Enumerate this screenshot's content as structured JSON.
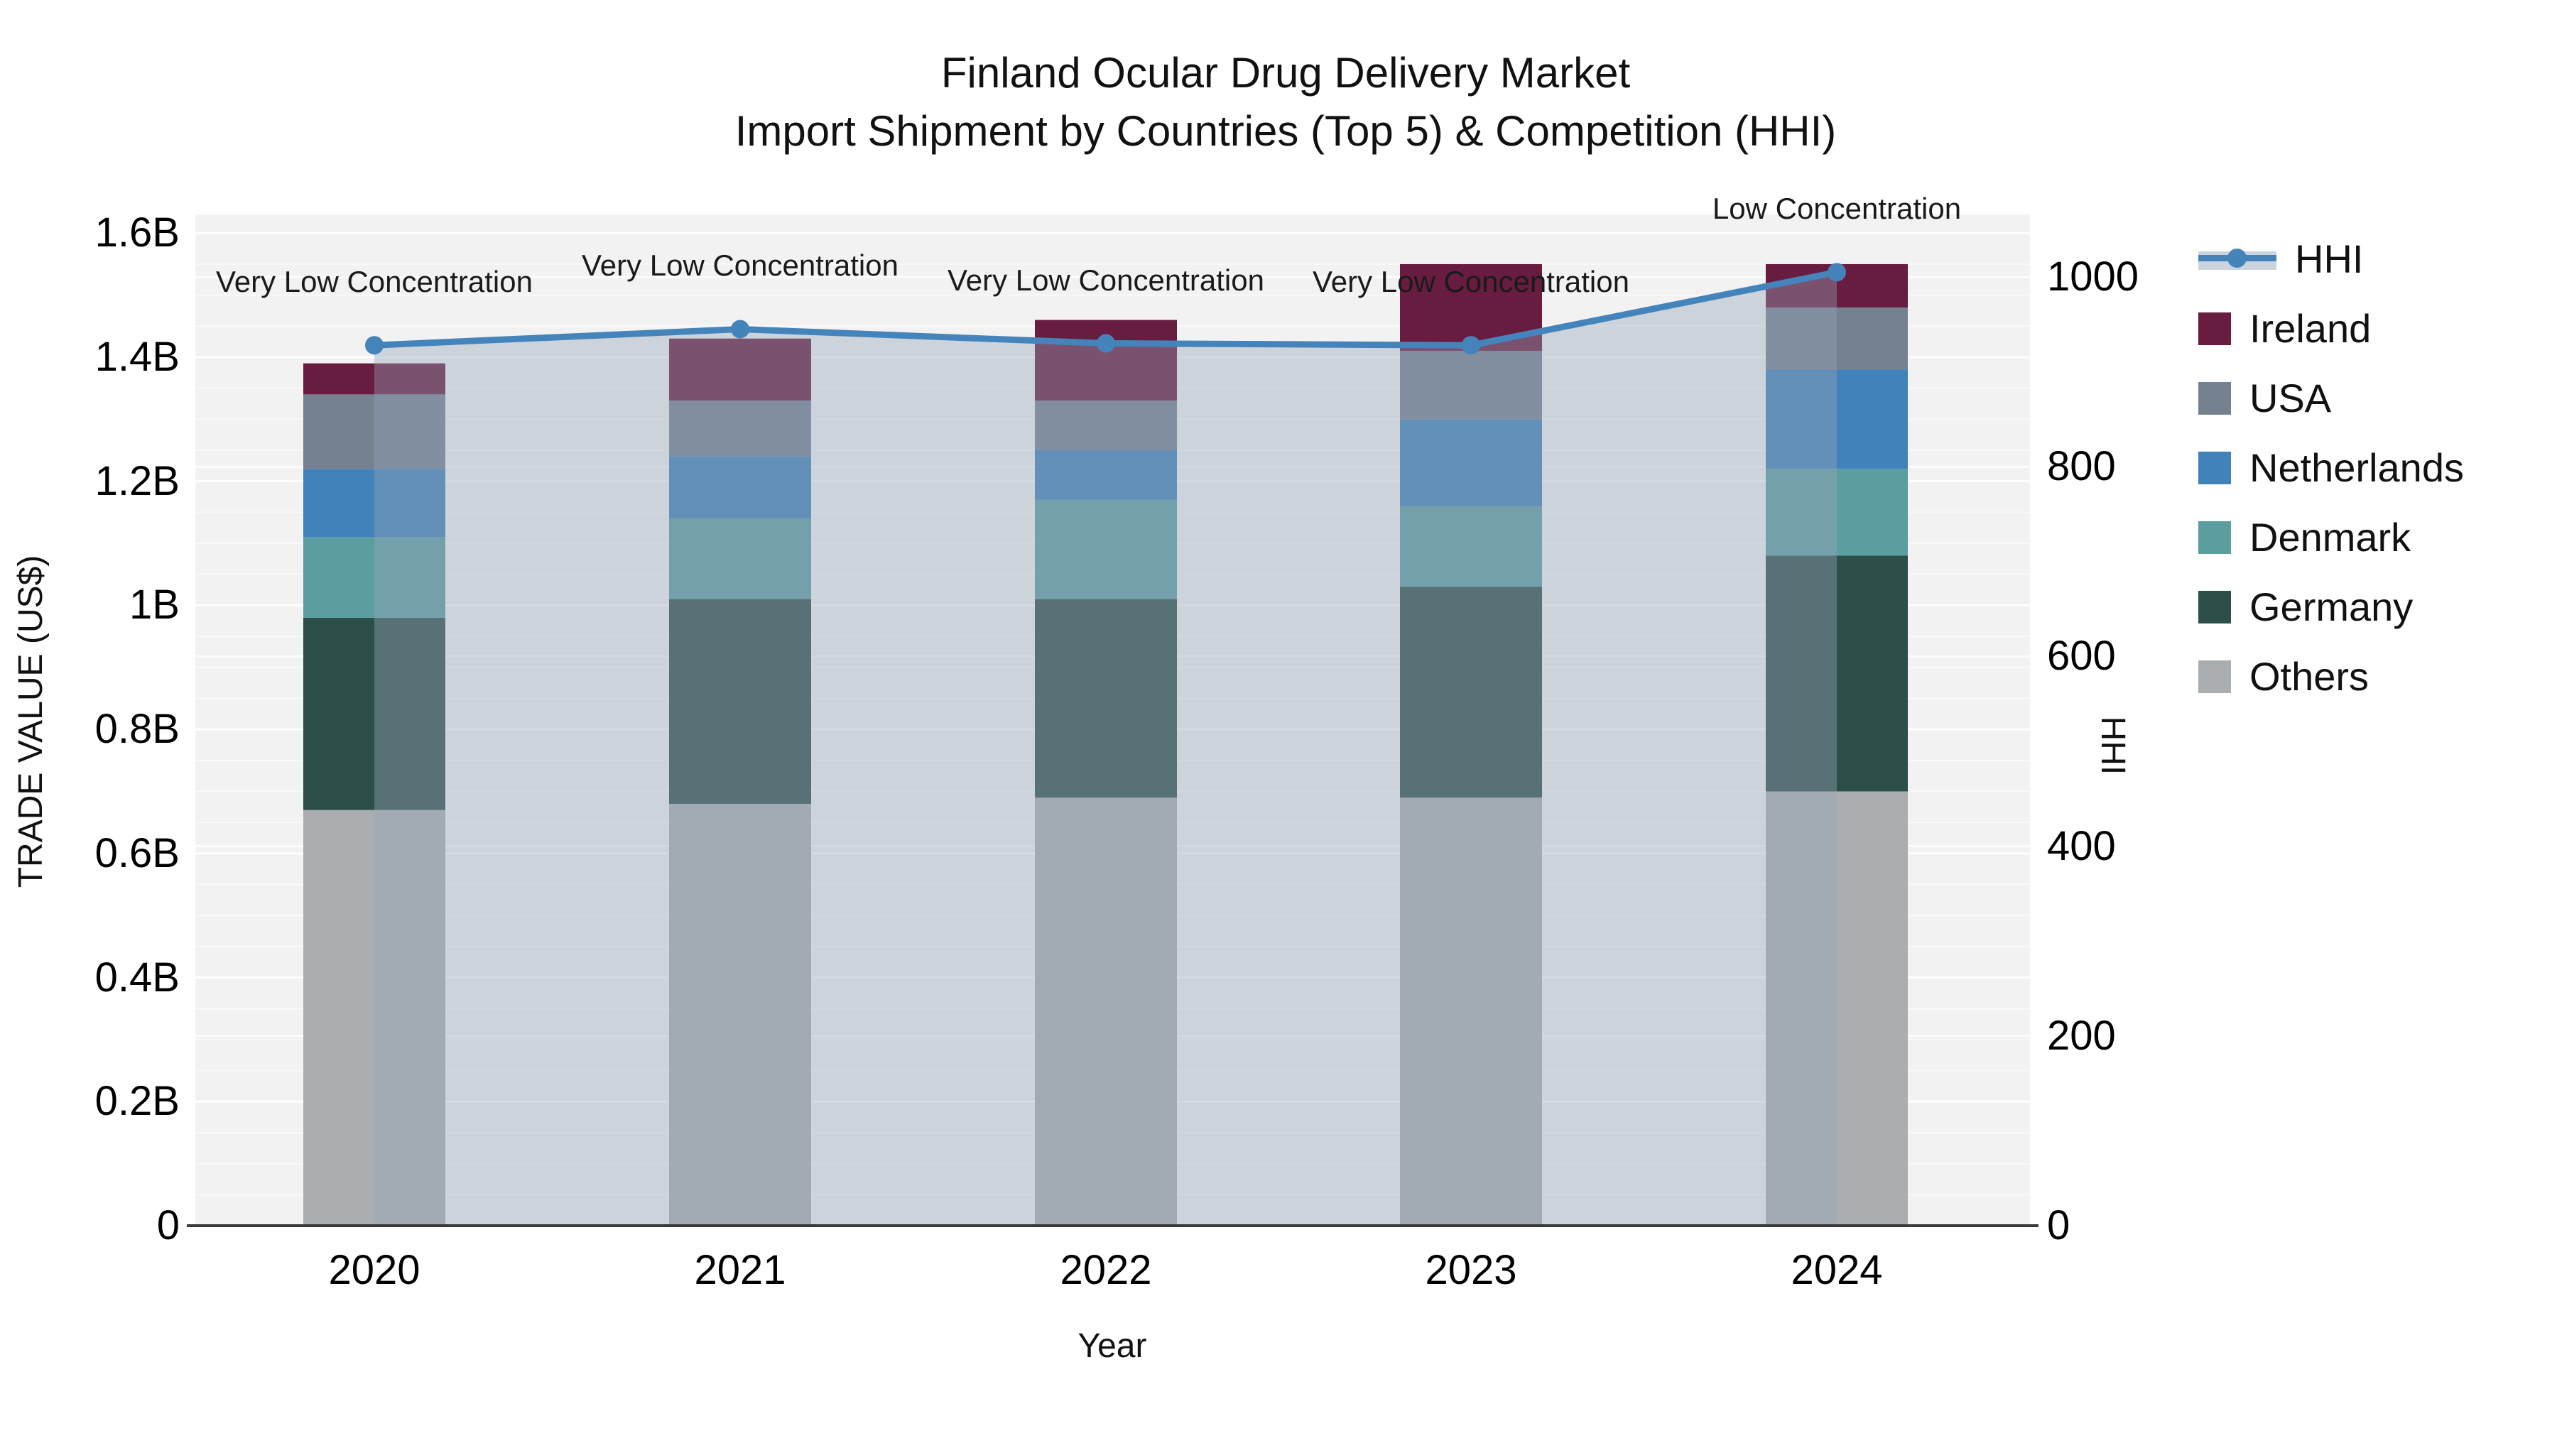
{
  "title": {
    "line1": "Finland Ocular Drug Delivery Market",
    "line2": "Import Shipment by Countries (Top 5) & Competition (HHI)"
  },
  "axes": {
    "left": {
      "title": "TRADE VALUE (US$)",
      "ticks": [
        "0",
        "0.2B",
        "0.4B",
        "0.6B",
        "0.8B",
        "1B",
        "1.2B",
        "1.4B",
        "1.6B"
      ],
      "tick_values": [
        0,
        0.2,
        0.4,
        0.6,
        0.8,
        1.0,
        1.2,
        1.4,
        1.6
      ]
    },
    "right": {
      "title": "HHI",
      "ticks": [
        "0",
        "200",
        "400",
        "600",
        "800",
        "1000"
      ],
      "tick_values": [
        0,
        200,
        400,
        600,
        800,
        1000
      ]
    },
    "x": {
      "title": "Year",
      "ticks": [
        "2020",
        "2021",
        "2022",
        "2023",
        "2024"
      ]
    }
  },
  "legend": {
    "items": [
      {
        "label": "HHI",
        "type": "line"
      },
      {
        "label": "Ireland",
        "type": "swatch",
        "series": "Ireland"
      },
      {
        "label": "USA",
        "type": "swatch",
        "series": "USA"
      },
      {
        "label": "Netherlands",
        "type": "swatch",
        "series": "Netherlands"
      },
      {
        "label": "Denmark",
        "type": "swatch",
        "series": "Denmark"
      },
      {
        "label": "Germany",
        "type": "swatch",
        "series": "Germany"
      },
      {
        "label": "Others",
        "type": "swatch",
        "series": "Others"
      }
    ]
  },
  "colors": {
    "hhi_line": "#4584bb",
    "area_fill": "rgba(150,165,185,0.40)",
    "plot_bg": "#f2f2f2",
    "grid": "#ffffff",
    "axis_line": "#3a3a3a",
    "series": {
      "Ireland": "#681c40",
      "USA": "#75818f",
      "Netherlands": "#4182ba",
      "Denmark": "#5c9da0",
      "Germany": "#2d4f4a",
      "Others": "#abaeb0"
    }
  },
  "chart_data": {
    "type": "bar",
    "subtype": "stacked-bar-with-line-overlay",
    "title": "Finland Ocular Drug Delivery Market — Import Shipment by Countries (Top 5) & Competition (HHI)",
    "xlabel": "Year",
    "ylabel": "TRADE VALUE (US$)",
    "ylabel_right": "HHI",
    "units_left": "billions of US$",
    "categories": [
      2020,
      2021,
      2022,
      2023,
      2024
    ],
    "stack_order_bottom_to_top": [
      "Others",
      "Germany",
      "Denmark",
      "Netherlands",
      "USA",
      "Ireland"
    ],
    "series": [
      {
        "name": "Others",
        "values": [
          0.67,
          0.68,
          0.69,
          0.69,
          0.7
        ]
      },
      {
        "name": "Germany",
        "values": [
          0.31,
          0.33,
          0.32,
          0.34,
          0.38
        ]
      },
      {
        "name": "Denmark",
        "values": [
          0.13,
          0.13,
          0.16,
          0.13,
          0.14
        ]
      },
      {
        "name": "Netherlands",
        "values": [
          0.11,
          0.1,
          0.08,
          0.14,
          0.16
        ]
      },
      {
        "name": "USA",
        "values": [
          0.12,
          0.09,
          0.08,
          0.11,
          0.1
        ]
      },
      {
        "name": "Ireland",
        "values": [
          0.05,
          0.1,
          0.13,
          0.14,
          0.07
        ]
      }
    ],
    "bar_totals": [
      1.39,
      1.43,
      1.46,
      1.55,
      1.55
    ],
    "line_series": {
      "name": "HHI",
      "axis": "right",
      "values": [
        928,
        945,
        930,
        928,
        1005
      ]
    },
    "annotations": [
      "Very Low Concentration",
      "Very Low Concentration",
      "Very Low Concentration",
      "Very Low Concentration",
      "Low Concentration"
    ],
    "ylim_left": [
      0,
      1.63
    ],
    "ylim_right": [
      0,
      1066
    ],
    "grid": true,
    "legend_position": "right"
  }
}
